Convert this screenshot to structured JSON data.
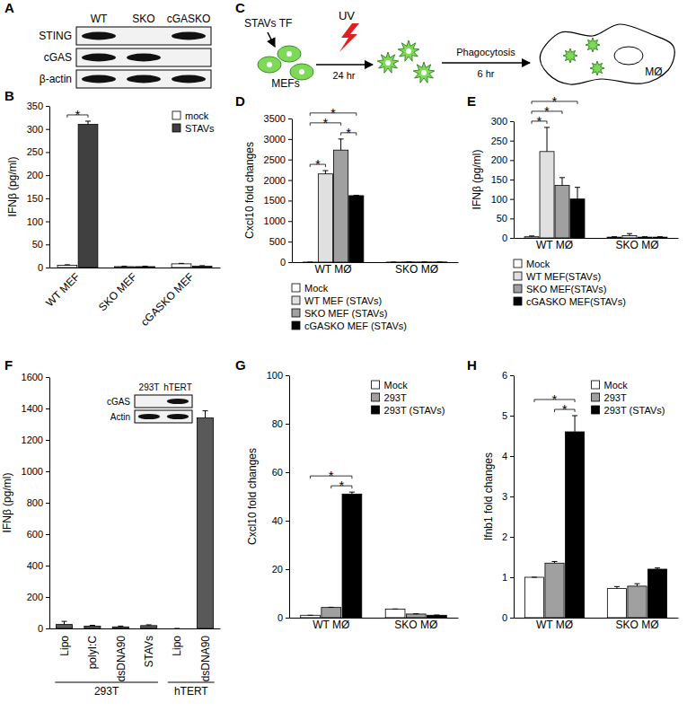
{
  "blots": [
    {
      "panel": "A",
      "columns": [
        "WT",
        "SKO",
        "cGASKO"
      ],
      "rows": [
        "STING",
        "cGAS",
        "β-actin"
      ],
      "bands": [
        [
          true,
          false,
          true
        ],
        [
          true,
          true,
          false
        ],
        [
          true,
          true,
          true
        ]
      ]
    },
    {
      "columns": [
        "293T",
        "hTERT"
      ],
      "rows": [
        "cGAS",
        "Actin"
      ],
      "bands": [
        [
          false,
          true
        ],
        [
          true,
          true
        ]
      ]
    }
  ],
  "diagram": {
    "panel": "C",
    "labels": {
      "transfection": "STAVs TF",
      "uv": "UV",
      "cells": "MEFs",
      "time1": "24 hr",
      "process": "Phagocytosis",
      "time2": "6 hr",
      "macrophage": "MØ"
    }
  },
  "chart_data": [
    {
      "panel": "B",
      "type": "bar",
      "y_label": "IFNβ (pg/ml)",
      "categories": [
        "WT MEF",
        "SKO MEF",
        "cGASKO MEF"
      ],
      "series": [
        {
          "name": "mock",
          "color": "#ffffff",
          "values": [
            5,
            2,
            8
          ],
          "errors": [
            1,
            1,
            1
          ]
        },
        {
          "name": "STAVs",
          "color": "#404040",
          "values": [
            310,
            2,
            3
          ],
          "errors": [
            7,
            1,
            1
          ]
        }
      ],
      "ylim": [
        0,
        350
      ],
      "yticks": [
        0,
        50,
        100,
        150,
        200,
        250,
        300,
        350
      ],
      "legend": "upper right",
      "annotations": [
        {
          "text": "*",
          "category": 0,
          "series": [
            0,
            1
          ]
        }
      ]
    },
    {
      "panel": "D",
      "type": "bar",
      "y_label": "Cxcl10 fold changes",
      "categories": [
        "WT MØ",
        "SKO MØ"
      ],
      "series": [
        {
          "name": "Mock",
          "color": "#ffffff",
          "values": [
            1,
            2
          ],
          "errors": [
            0,
            0
          ]
        },
        {
          "name": "WT MEF (STAVs)",
          "color": "#e0e0e0",
          "values": [
            2150,
            5
          ],
          "errors": [
            80,
            1
          ]
        },
        {
          "name": "SKO MEF (STAVs)",
          "color": "#a0a0a0",
          "values": [
            2730,
            4
          ],
          "errors": [
            270,
            1
          ]
        },
        {
          "name": "cGASKO MEF (STAVs)",
          "color": "#000000",
          "values": [
            1620,
            3
          ],
          "errors": [
            10,
            1
          ]
        }
      ],
      "ylim": [
        0,
        3500
      ],
      "yticks": [
        0,
        500,
        1000,
        1500,
        2000,
        2500,
        3000,
        3500
      ],
      "legend": "bottom",
      "annotations": [
        {
          "text": "*",
          "category": 0,
          "series": [
            0,
            3
          ]
        },
        {
          "text": "*",
          "category": 0,
          "series": [
            0,
            2
          ]
        },
        {
          "text": "*",
          "category": 0,
          "series": [
            2,
            3
          ]
        },
        {
          "text": "*",
          "category": 0,
          "series": [
            0,
            1
          ]
        }
      ]
    },
    {
      "panel": "E",
      "type": "bar",
      "y_label": "IFNβ (pg/ml)",
      "categories": [
        "WT MØ",
        "SKO MØ"
      ],
      "series": [
        {
          "name": "Mock",
          "color": "#ffffff",
          "values": [
            3,
            2
          ],
          "errors": [
            2,
            1
          ]
        },
        {
          "name": "WT MEF(STAVs)",
          "color": "#e0e0e0",
          "values": [
            222,
            6
          ],
          "errors": [
            62,
            5
          ]
        },
        {
          "name": "SKO MEF(STAVs)",
          "color": "#a0a0a0",
          "values": [
            135,
            2
          ],
          "errors": [
            20,
            1
          ]
        },
        {
          "name": "cGASKO MEF(STAVs)",
          "color": "#000000",
          "values": [
            100,
            2
          ],
          "errors": [
            30,
            1
          ]
        }
      ],
      "ylim": [
        0,
        300
      ],
      "yticks": [
        0,
        50,
        100,
        150,
        200,
        250,
        300
      ],
      "legend": "bottom",
      "annotations": [
        {
          "text": "*",
          "category": 0,
          "series": [
            0,
            3
          ]
        },
        {
          "text": "*",
          "category": 0,
          "series": [
            0,
            2
          ]
        },
        {
          "text": "*",
          "category": 0,
          "series": [
            0,
            1
          ]
        }
      ]
    },
    {
      "panel": "F",
      "type": "bar",
      "y_label": "IFNβ (pg/ml)",
      "categories": [
        "Lipo",
        "polyI:C",
        "dsDNA90",
        "STAVs",
        "Lipo",
        "dsDNA90"
      ],
      "values": [
        25,
        15,
        10,
        18,
        0,
        1340
      ],
      "errors": [
        20,
        5,
        5,
        5,
        0,
        45
      ],
      "color": "#595959",
      "ylim": [
        0,
        1600
      ],
      "yticks": [
        0,
        200,
        400,
        600,
        800,
        1000,
        1200,
        1400,
        1600
      ],
      "groups": [
        {
          "label": "293T",
          "categories": [
            0,
            3
          ]
        },
        {
          "label": "hTERT",
          "categories": [
            4,
            5
          ]
        }
      ]
    },
    {
      "panel": "G",
      "type": "bar",
      "y_label": "Cxcl10 fold changes",
      "categories": [
        "WT MØ",
        "SKO MØ"
      ],
      "series": [
        {
          "name": "Mock",
          "color": "#ffffff",
          "values": [
            1,
            3.5
          ],
          "errors": [
            0,
            0.1
          ]
        },
        {
          "name": "293T",
          "color": "#a0a0a0",
          "values": [
            4.2,
            1.5
          ],
          "errors": [
            0.1,
            0.1
          ]
        },
        {
          "name": "293T (STAVs)",
          "color": "#000000",
          "values": [
            51,
            1
          ],
          "errors": [
            0.8,
            0.1
          ]
        }
      ],
      "ylim": [
        0,
        100
      ],
      "yticks": [
        0,
        20,
        40,
        60,
        80,
        100
      ],
      "legend": "upper right",
      "annotations": [
        {
          "text": "*",
          "category": 0,
          "series": [
            0,
            2
          ]
        },
        {
          "text": "*",
          "category": 0,
          "series": [
            1,
            2
          ]
        }
      ]
    },
    {
      "panel": "H",
      "type": "bar",
      "y_label": "Ifnb1 fold changes",
      "categories": [
        "WT MØ",
        "SKO MØ"
      ],
      "series": [
        {
          "name": "Mock",
          "color": "#ffffff",
          "values": [
            1,
            0.72
          ],
          "errors": [
            0,
            0.05
          ]
        },
        {
          "name": "293T",
          "color": "#a0a0a0",
          "values": [
            1.35,
            0.78
          ],
          "errors": [
            0.04,
            0.06
          ]
        },
        {
          "name": "293T (STAVs)",
          "color": "#000000",
          "values": [
            4.6,
            1.2
          ],
          "errors": [
            0.4,
            0.03
          ]
        }
      ],
      "ylim": [
        0,
        6
      ],
      "yticks": [
        0,
        1,
        2,
        3,
        4,
        5,
        6
      ],
      "legend": "upper right",
      "annotations": [
        {
          "text": "*",
          "category": 0,
          "series": [
            0,
            2
          ]
        },
        {
          "text": "*",
          "category": 0,
          "series": [
            1,
            2
          ]
        }
      ]
    }
  ]
}
